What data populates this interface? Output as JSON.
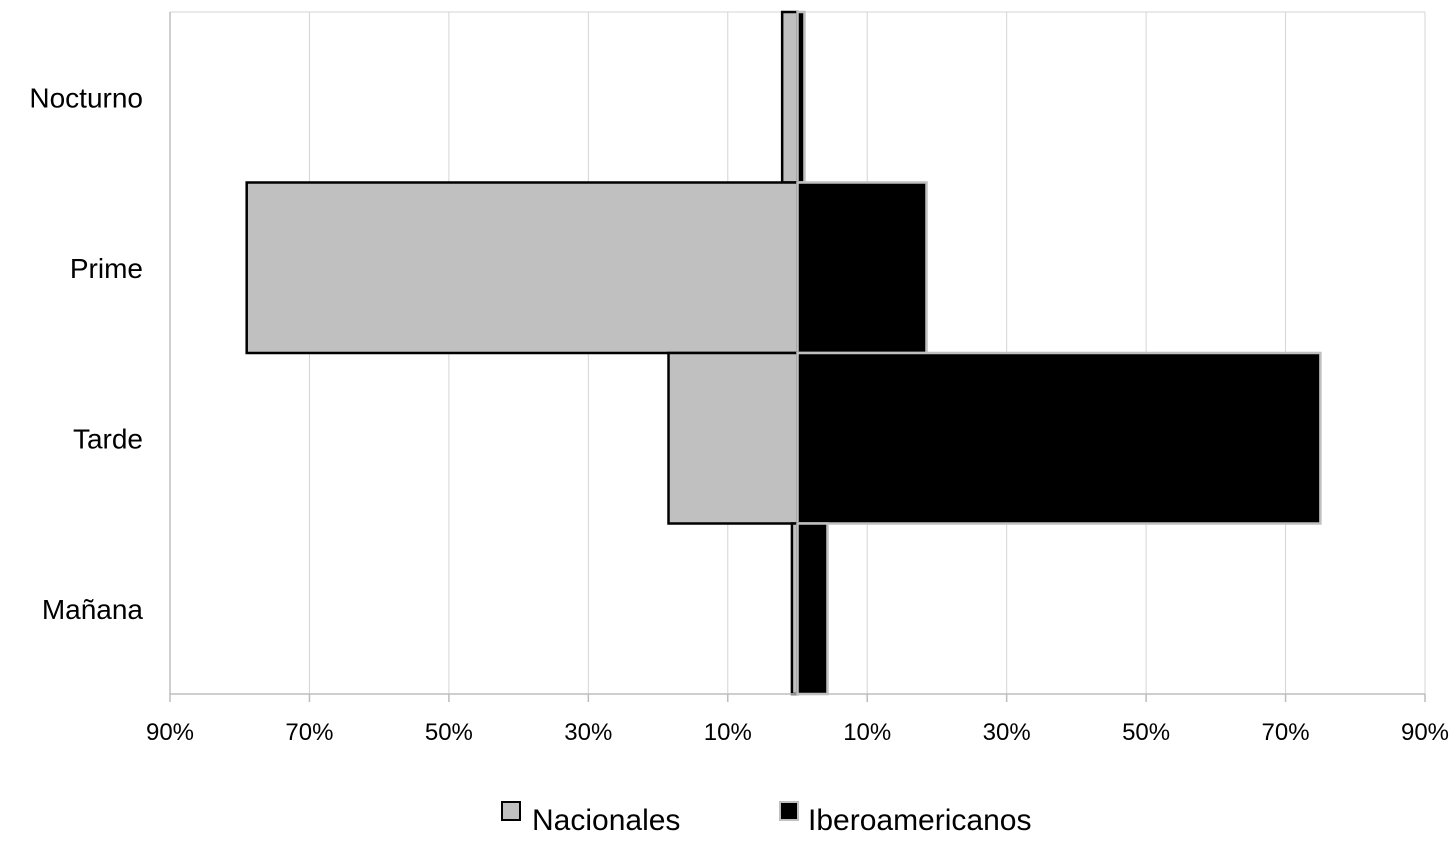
{
  "chart_data": {
    "type": "bar",
    "orientation": "horizontal",
    "layout": "diverging",
    "categories": [
      "Nocturno",
      "Prime",
      "Tarde",
      "Mañana"
    ],
    "series": [
      {
        "name": "Nacionales",
        "direction": "left",
        "values": [
          2.2,
          79.0,
          18.5,
          0.8
        ]
      },
      {
        "name": "Iberoamericanos",
        "direction": "right",
        "values": [
          1.0,
          18.5,
          75.0,
          4.3
        ]
      }
    ],
    "x_tick_labels": [
      "90%",
      "70%",
      "50%",
      "30%",
      "10%",
      "10%",
      "30%",
      "50%",
      "70%",
      "90%"
    ],
    "xlim": [
      -90,
      90
    ],
    "grid": true,
    "legend_position": "bottom",
    "colors": {
      "Nacionales": "#c0c0c0",
      "Iberoamericanos": "#000000",
      "grid": "#d4d4d4",
      "axis": "#bdbdbd"
    }
  }
}
